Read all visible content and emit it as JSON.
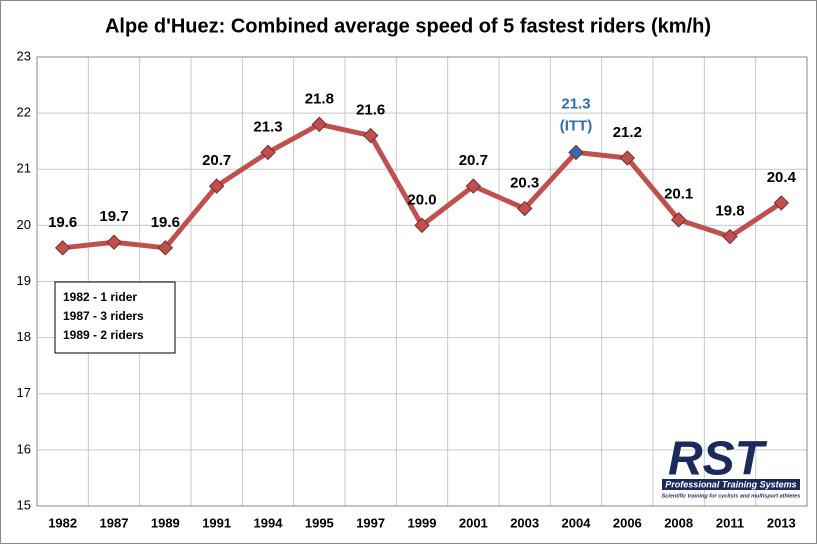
{
  "chart_data": {
    "type": "line",
    "title": "Alpe d'Huez: Combined average speed of 5 fastest riders (km/h)",
    "categories": [
      "1982",
      "1987",
      "1989",
      "1991",
      "1994",
      "1995",
      "1997",
      "1999",
      "2001",
      "2003",
      "2004",
      "2006",
      "2008",
      "2011",
      "2013"
    ],
    "series": [
      {
        "name": "Combined average speed",
        "color": "#c0504d",
        "values": [
          19.6,
          19.7,
          19.6,
          20.7,
          21.3,
          21.8,
          21.6,
          20.0,
          20.7,
          20.3,
          21.3,
          21.2,
          20.1,
          19.8,
          20.4
        ],
        "value_labels": [
          "19.6",
          "19.7",
          "19.6",
          "20.7",
          "21.3",
          "21.8",
          "21.6",
          "20.0",
          "20.7",
          "20.3",
          "21.3",
          "21.2",
          "20.1",
          "19.8",
          "20.4"
        ],
        "point_colors": [
          "#c0504d",
          "#c0504d",
          "#c0504d",
          "#c0504d",
          "#c0504d",
          "#c0504d",
          "#c0504d",
          "#c0504d",
          "#c0504d",
          "#c0504d",
          "#2e6db4",
          "#c0504d",
          "#c0504d",
          "#c0504d",
          "#c0504d"
        ]
      }
    ],
    "ylim": [
      15,
      23
    ],
    "yticks": [
      15,
      16,
      17,
      18,
      19,
      20,
      21,
      22,
      23
    ],
    "grid": true,
    "annotations": [
      "(ITT)"
    ],
    "note": [
      "1982 - 1 rider",
      "1987 - 3 riders",
      "1989 - 2 riders"
    ],
    "logo": {
      "mark": "RST",
      "name": "Professional Training Systems",
      "tagline": "Scientific training for cyclists and multisport athletes"
    }
  }
}
